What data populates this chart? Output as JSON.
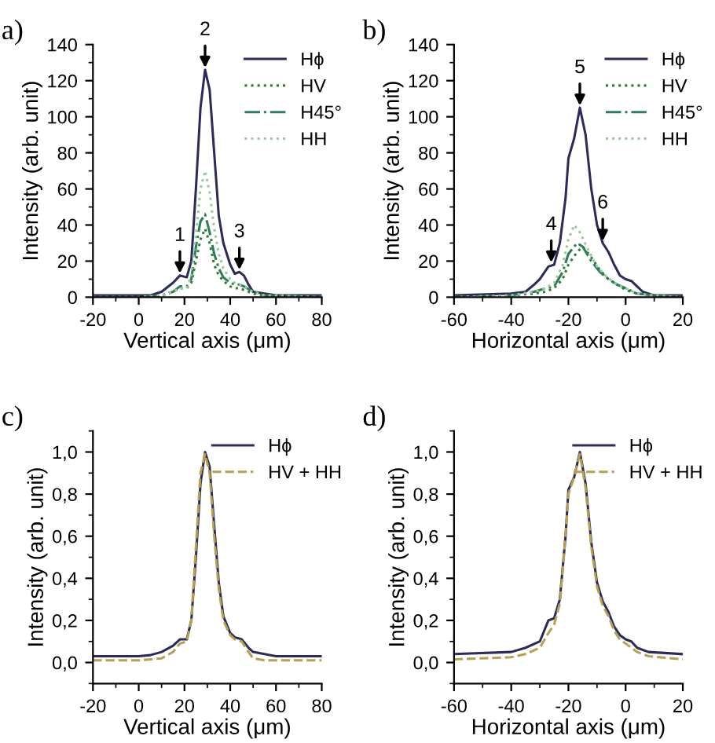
{
  "chart_data": [
    {
      "type": "line",
      "title": "a)",
      "xlabel": "Vertical axis (μm)",
      "ylabel": "Intensity (arb. unit)",
      "xlim": [
        -20,
        80
      ],
      "xticks": [
        -20,
        0,
        20,
        40,
        60,
        80
      ],
      "ylim": [
        0,
        140
      ],
      "yticks": [
        0,
        20,
        40,
        60,
        80,
        100,
        120,
        140
      ],
      "legend": "top right",
      "grid": false,
      "series": [
        {
          "name": "Hϕ",
          "color": "#2c2c5c",
          "line_style": "solid",
          "x": [
            -20,
            0,
            5,
            10,
            15,
            18,
            21,
            23,
            25,
            27,
            29,
            31,
            33,
            35,
            37,
            40,
            42,
            44,
            46,
            48,
            50,
            55,
            60,
            80
          ],
          "values": [
            1,
            1,
            1,
            3,
            8,
            12,
            11,
            20,
            60,
            105,
            126,
            115,
            80,
            45,
            30,
            18,
            13,
            14,
            12,
            7,
            3,
            2,
            1,
            1
          ]
        },
        {
          "name": "HV",
          "color": "#2e7d32",
          "line_style": "dotted",
          "x": [
            -20,
            0,
            10,
            15,
            18,
            21,
            23,
            25,
            27,
            29,
            31,
            33,
            35,
            37,
            40,
            42,
            44,
            46,
            50,
            55,
            80
          ],
          "values": [
            0,
            0,
            1,
            3,
            5,
            5,
            8,
            20,
            32,
            38,
            30,
            18,
            12,
            9,
            6,
            5,
            5,
            4,
            2,
            1,
            0
          ]
        },
        {
          "name": "H45°",
          "color": "#2e7d5a",
          "line_style": "dashdot",
          "x": [
            -20,
            0,
            10,
            15,
            18,
            21,
            23,
            25,
            27,
            29,
            31,
            33,
            35,
            37,
            40,
            42,
            44,
            46,
            50,
            55,
            80
          ],
          "values": [
            0,
            0,
            1,
            3,
            6,
            6,
            10,
            28,
            42,
            46,
            36,
            24,
            16,
            11,
            8,
            7,
            7,
            6,
            3,
            1,
            0
          ]
        },
        {
          "name": "HH",
          "color": "#9cc89c",
          "line_style": "dotted",
          "x": [
            -20,
            0,
            10,
            15,
            18,
            21,
            23,
            25,
            27,
            29,
            31,
            33,
            35,
            37,
            40,
            42,
            44,
            46,
            50,
            55,
            80
          ],
          "values": [
            0,
            0,
            1,
            3,
            5,
            5,
            12,
            35,
            60,
            70,
            58,
            38,
            24,
            16,
            10,
            8,
            7,
            6,
            3,
            1,
            0
          ]
        }
      ],
      "annotations": [
        {
          "text": "1",
          "x": 18,
          "y": 12
        },
        {
          "text": "2",
          "x": 29,
          "y": 126
        },
        {
          "text": "3",
          "x": 44,
          "y": 14
        }
      ]
    },
    {
      "type": "line",
      "title": "b)",
      "xlabel": "Horizontal axis (μm)",
      "ylabel": "Intensity (arb. unit)",
      "xlim": [
        -60,
        20
      ],
      "xticks": [
        -60,
        -40,
        -20,
        0,
        20
      ],
      "ylim": [
        0,
        140
      ],
      "yticks": [
        0,
        20,
        40,
        60,
        80,
        100,
        120,
        140
      ],
      "legend": "top right",
      "grid": false,
      "series": [
        {
          "name": "Hϕ",
          "color": "#2c2c5c",
          "line_style": "solid",
          "x": [
            -60,
            -40,
            -35,
            -32,
            -30,
            -27,
            -25,
            -23,
            -21,
            -20,
            -18,
            -16,
            -14,
            -12,
            -10,
            -8,
            -6,
            -4,
            -2,
            0,
            2,
            4,
            6,
            10,
            20
          ],
          "values": [
            1,
            2,
            3,
            7,
            10,
            17,
            18,
            30,
            55,
            77,
            88,
            105,
            90,
            60,
            40,
            30,
            25,
            18,
            12,
            10,
            9,
            6,
            3,
            1,
            1
          ]
        },
        {
          "name": "HV",
          "color": "#2e7d32",
          "line_style": "dotted",
          "x": [
            -60,
            -40,
            -32,
            -28,
            -25,
            -22,
            -20,
            -17,
            -15,
            -12,
            -9,
            -6,
            -3,
            0,
            4,
            10,
            20
          ],
          "values": [
            0,
            1,
            2,
            3,
            5,
            10,
            18,
            25,
            28,
            22,
            15,
            10,
            7,
            4,
            2,
            1,
            0
          ]
        },
        {
          "name": "H45°",
          "color": "#2e7d5a",
          "line_style": "dashdot",
          "x": [
            -60,
            -40,
            -32,
            -28,
            -25,
            -22,
            -20,
            -17,
            -15,
            -12,
            -9,
            -6,
            -3,
            0,
            4,
            10,
            20
          ],
          "values": [
            0,
            1,
            3,
            5,
            6,
            14,
            24,
            30,
            28,
            20,
            14,
            10,
            7,
            5,
            2,
            1,
            0
          ]
        },
        {
          "name": "HH",
          "color": "#9cc89c",
          "line_style": "dotted",
          "x": [
            -60,
            -40,
            -32,
            -28,
            -25,
            -22,
            -20,
            -18,
            -16,
            -13,
            -10,
            -7,
            -4,
            0,
            4,
            10,
            20
          ],
          "values": [
            0,
            1,
            3,
            5,
            8,
            18,
            32,
            40,
            36,
            26,
            17,
            12,
            8,
            5,
            2,
            1,
            0
          ]
        }
      ],
      "annotations": [
        {
          "text": "4",
          "x": -26,
          "y": 18
        },
        {
          "text": "5",
          "x": -16,
          "y": 105
        },
        {
          "text": "6",
          "x": -8,
          "y": 30
        }
      ]
    },
    {
      "type": "line",
      "title": "c)",
      "xlabel": "Vertical axis (μm)",
      "ylabel": "Intensity (arb. unit)",
      "xlim": [
        -20,
        80
      ],
      "xticks": [
        -20,
        0,
        20,
        40,
        60,
        80
      ],
      "ylim": [
        -0.1,
        1.1
      ],
      "yticks": [
        {
          "value": 0,
          "label": "0,0"
        },
        {
          "value": 0.2,
          "label": "0,2"
        },
        {
          "value": 0.4,
          "label": "0,4"
        },
        {
          "value": 0.6,
          "label": "0,6"
        },
        {
          "value": 0.8,
          "label": "0,8"
        },
        {
          "value": 1,
          "label": "1,0"
        }
      ],
      "legend": "top right",
      "grid": false,
      "series": [
        {
          "name": "Hϕ",
          "color": "#2c2c5c",
          "line_style": "solid",
          "x": [
            -20,
            0,
            5,
            10,
            15,
            18,
            21,
            23,
            25,
            27,
            29,
            31,
            33,
            35,
            37,
            40,
            42,
            45,
            48,
            50,
            55,
            60,
            80
          ],
          "values": [
            0.03,
            0.03,
            0.035,
            0.05,
            0.08,
            0.11,
            0.11,
            0.2,
            0.5,
            0.85,
            1.0,
            0.93,
            0.65,
            0.38,
            0.22,
            0.14,
            0.12,
            0.11,
            0.07,
            0.05,
            0.04,
            0.03,
            0.03
          ]
        },
        {
          "name": "HV + HH",
          "color": "#b8a050",
          "line_style": "dashed",
          "x": [
            -20,
            0,
            10,
            15,
            18,
            21,
            23,
            25,
            27,
            29,
            31,
            33,
            35,
            37,
            40,
            42,
            45,
            48,
            50,
            55,
            80
          ],
          "values": [
            0.01,
            0.01,
            0.02,
            0.05,
            0.09,
            0.1,
            0.2,
            0.55,
            0.9,
            0.99,
            0.9,
            0.6,
            0.35,
            0.2,
            0.13,
            0.11,
            0.1,
            0.05,
            0.02,
            0.01,
            0.01
          ]
        }
      ]
    },
    {
      "type": "line",
      "title": "d)",
      "xlabel": "Horizontal axis (μm)",
      "ylabel": "Intensity (arb. unit)",
      "xlim": [
        -60,
        20
      ],
      "xticks": [
        -60,
        -40,
        -20,
        0,
        20
      ],
      "ylim": [
        -0.1,
        1.1
      ],
      "yticks": [
        {
          "value": 0,
          "label": "0,0"
        },
        {
          "value": 0.2,
          "label": "0,2"
        },
        {
          "value": 0.4,
          "label": "0,4"
        },
        {
          "value": 0.6,
          "label": "0,6"
        },
        {
          "value": 0.8,
          "label": "0,8"
        },
        {
          "value": 1,
          "label": "1,0"
        }
      ],
      "legend": "top right",
      "grid": false,
      "series": [
        {
          "name": "Hϕ",
          "color": "#2c2c5c",
          "line_style": "solid",
          "x": [
            -60,
            -40,
            -35,
            -30,
            -27,
            -25,
            -23,
            -21,
            -20,
            -18,
            -16,
            -14,
            -12,
            -10,
            -8,
            -6,
            -4,
            -2,
            0,
            2,
            4,
            8,
            20
          ],
          "values": [
            0.04,
            0.05,
            0.07,
            0.1,
            0.2,
            0.21,
            0.3,
            0.6,
            0.82,
            0.88,
            1.0,
            0.85,
            0.57,
            0.38,
            0.29,
            0.24,
            0.17,
            0.13,
            0.11,
            0.1,
            0.07,
            0.05,
            0.04
          ]
        },
        {
          "name": "HV + HH",
          "color": "#b8a050",
          "line_style": "dashed",
          "x": [
            -60,
            -40,
            -35,
            -30,
            -27,
            -25,
            -23,
            -21,
            -20,
            -18,
            -16,
            -14,
            -12,
            -10,
            -8,
            -6,
            -4,
            -2,
            0,
            4,
            8,
            20
          ],
          "values": [
            0.015,
            0.025,
            0.04,
            0.07,
            0.14,
            0.18,
            0.28,
            0.6,
            0.8,
            0.88,
            0.99,
            0.83,
            0.55,
            0.36,
            0.27,
            0.22,
            0.15,
            0.11,
            0.09,
            0.05,
            0.03,
            0.015
          ]
        }
      ]
    }
  ]
}
